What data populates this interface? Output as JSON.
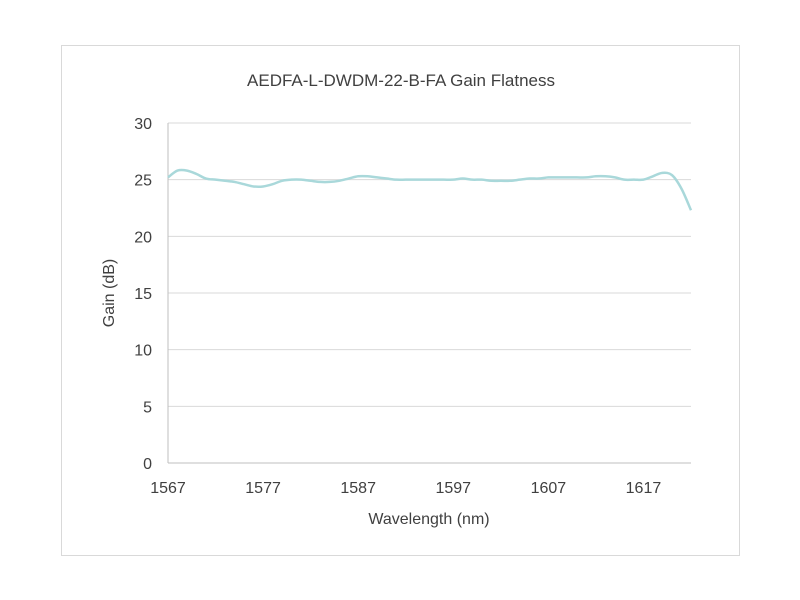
{
  "chart_data": {
    "type": "line",
    "title": "AEDFA-L-DWDM-22-B-FA Gain Flatness",
    "xlabel": "Wavelength (nm)",
    "ylabel": "Gain (dB)",
    "xlim": [
      1567,
      1622
    ],
    "ylim": [
      0,
      30
    ],
    "x_ticks": [
      1567,
      1577,
      1587,
      1597,
      1607,
      1617
    ],
    "y_ticks": [
      0,
      5,
      10,
      15,
      20,
      25,
      30
    ],
    "grid": "horizontal",
    "legend": "none",
    "series": [
      {
        "color": "#a9d8da",
        "x": [
          1567,
          1568,
          1569,
          1570,
          1571,
          1572,
          1573,
          1574,
          1575,
          1576,
          1577,
          1578,
          1579,
          1580,
          1581,
          1582,
          1583,
          1584,
          1585,
          1586,
          1587,
          1588,
          1589,
          1590,
          1591,
          1592,
          1593,
          1594,
          1595,
          1596,
          1597,
          1598,
          1599,
          1600,
          1601,
          1602,
          1603,
          1604,
          1605,
          1606,
          1607,
          1608,
          1609,
          1610,
          1611,
          1612,
          1613,
          1614,
          1615,
          1616,
          1617,
          1618,
          1619,
          1620,
          1621,
          1622
        ],
        "y": [
          25.2,
          25.8,
          25.8,
          25.5,
          25.1,
          25.0,
          24.9,
          24.8,
          24.6,
          24.4,
          24.4,
          24.6,
          24.9,
          25.0,
          25.0,
          24.9,
          24.8,
          24.8,
          24.9,
          25.1,
          25.3,
          25.3,
          25.2,
          25.1,
          25.0,
          25.0,
          25.0,
          25.0,
          25.0,
          25.0,
          25.0,
          25.1,
          25.0,
          25.0,
          24.9,
          24.9,
          24.9,
          25.0,
          25.1,
          25.1,
          25.2,
          25.2,
          25.2,
          25.2,
          25.2,
          25.3,
          25.3,
          25.2,
          25.0,
          25.0,
          25.0,
          25.3,
          25.6,
          25.4,
          24.2,
          22.3
        ]
      }
    ]
  }
}
